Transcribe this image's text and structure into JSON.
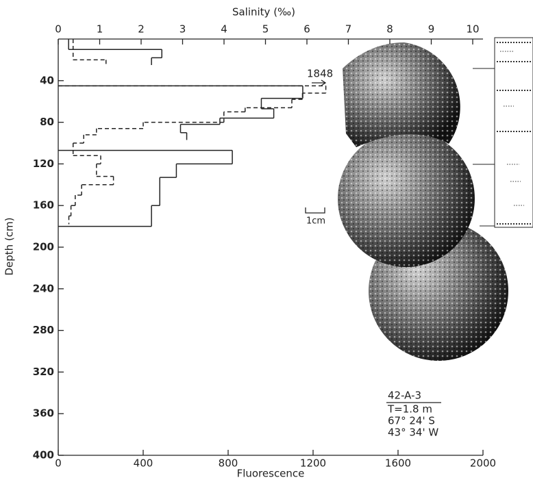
{
  "chart_data": {
    "type": "step-profile",
    "title": "42-A-3",
    "xlabel": "Fluorescence",
    "x2label": "Salinity (‰)",
    "ylabel": "Depth (cm)",
    "xlim": [
      0,
      2000
    ],
    "xticks": [
      0,
      400,
      800,
      1200,
      1600,
      2000
    ],
    "x2lim": [
      0,
      10
    ],
    "x2ticks": [
      0,
      1,
      2,
      3,
      4,
      5,
      6,
      7,
      8,
      9,
      10
    ],
    "ylim": [
      0,
      400
    ],
    "yticks": [
      40,
      80,
      120,
      160,
      200,
      240,
      280,
      320,
      360,
      400
    ],
    "y_inverted": true,
    "series": [
      {
        "axis": "x2",
        "style": "solid",
        "color": "#222222",
        "pieces": [
          {
            "depths": [
              0,
              10,
              18,
              25
            ],
            "values": [
              0.25,
              2.5,
              2.25
            ]
          },
          {
            "depths": [
              45,
              57,
              67,
              76,
              82,
              90,
              97
            ],
            "values": [
              5.9,
              4.9,
              5.2,
              3.9,
              2.95,
              3.1
            ]
          },
          {
            "depths": [
              107,
              120,
              133,
              160,
              180
            ],
            "values": [
              4.2,
              2.85,
              2.45,
              2.25
            ]
          }
        ]
      },
      {
        "axis": "x",
        "style": "dashed",
        "color": "#222222",
        "pieces": [
          {
            "depths": [
              0,
              20,
              25
            ],
            "values": [
              70,
              225
            ]
          },
          {
            "depths": [
              45,
              52,
              58,
              66,
              70,
              80,
              86,
              92,
              100,
              112,
              120,
              132,
              140,
              150,
              160,
              170,
              178
            ],
            "values": [
              1260,
              1150,
              1100,
              880,
              780,
              400,
              180,
              120,
              70,
              200,
              180,
              260,
              110,
              80,
              60,
              50
            ]
          }
        ]
      }
    ],
    "annotations": {
      "peak": "1848",
      "scale": "1cm",
      "thickness": "T=1.8 m",
      "latitude": "67° 24' S",
      "longitude": "43° 34' W"
    }
  }
}
